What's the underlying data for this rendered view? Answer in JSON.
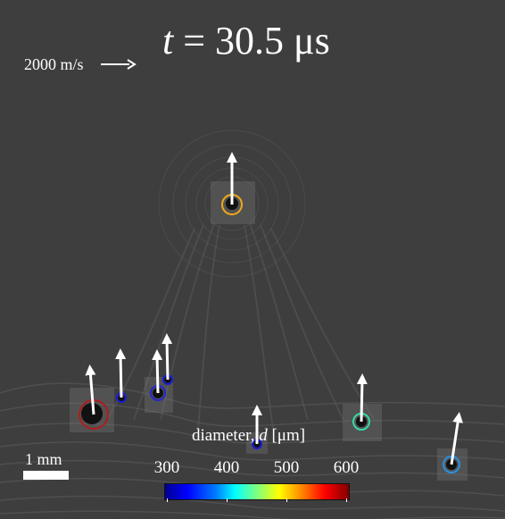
{
  "time_label": {
    "var": "t",
    "rest": " = 30.5 μs"
  },
  "speed_scale": {
    "label": "2000 m/s"
  },
  "length_scale": {
    "label": "1 mm"
  },
  "colorbar": {
    "title_prefix": "diameter, ",
    "title_var": "d",
    "title_unit": " [μm]",
    "ticks": [
      "300",
      "400",
      "500",
      "600"
    ]
  },
  "particles": [
    {
      "name": "bubble-top-orange",
      "color": "#f0a818"
    },
    {
      "name": "bubble-red-large",
      "color": "#b01c1c"
    },
    {
      "name": "bubble-blue-small-1",
      "color": "#1a1ad8"
    },
    {
      "name": "bubble-blue-2",
      "color": "#2424d0"
    },
    {
      "name": "bubble-blue-small-3",
      "color": "#1a1ad8"
    },
    {
      "name": "bubble-center-small",
      "color": "#1a1ad8"
    },
    {
      "name": "bubble-green",
      "color": "#38d8a8"
    },
    {
      "name": "bubble-light-blue",
      "color": "#2890e0"
    }
  ]
}
